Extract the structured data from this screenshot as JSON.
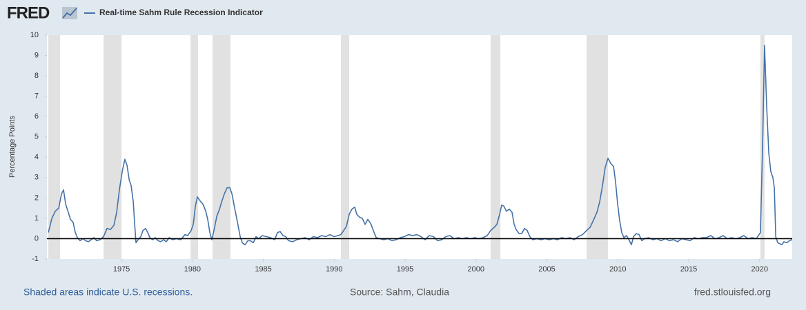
{
  "chart_data": {
    "type": "line",
    "logo": "FRED",
    "title": "Real-time Sahm Rule Recession Indicator",
    "ylabel": "Percentage Points",
    "note": "Shaded areas indicate U.S. recessions.",
    "source": "Source: Sahm, Claudia",
    "site": "fred.stlouisfed.org",
    "xlim": [
      1969.74,
      2022.3
    ],
    "xticks": [
      1975,
      1980,
      1985,
      1990,
      1995,
      2000,
      2005,
      2010,
      2015,
      2020
    ],
    "ylim": [
      -1,
      10
    ],
    "yticks": [
      -1,
      0,
      1,
      2,
      3,
      4,
      5,
      6,
      7,
      8,
      9,
      10
    ],
    "reference_line": 0,
    "grid": false,
    "recession_color": "#e1e1e1",
    "recessions": [
      [
        1969.84,
        1970.67
      ],
      [
        1973.73,
        1975.0
      ],
      [
        1979.87,
        1980.4
      ],
      [
        1981.42,
        1982.69
      ],
      [
        1990.47,
        1991.06
      ],
      [
        2001.03,
        2001.72
      ],
      [
        2007.8,
        2009.31
      ],
      [
        2020.06,
        2020.35
      ]
    ],
    "x": [
      1969.84,
      1970.09,
      1970.33,
      1970.57,
      1970.77,
      1970.91,
      1971.06,
      1971.2,
      1971.4,
      1971.59,
      1971.74,
      1971.89,
      1972.08,
      1972.27,
      1972.47,
      1972.66,
      1972.86,
      1973.05,
      1973.25,
      1973.49,
      1973.73,
      1973.98,
      1974.22,
      1974.46,
      1974.66,
      1974.85,
      1975.05,
      1975.24,
      1975.39,
      1975.54,
      1975.68,
      1975.83,
      1975.92,
      1976.02,
      1976.17,
      1976.36,
      1976.51,
      1976.7,
      1976.85,
      1977.0,
      1977.19,
      1977.38,
      1977.58,
      1977.77,
      1977.97,
      1978.16,
      1978.36,
      1978.6,
      1978.89,
      1979.18,
      1979.48,
      1979.67,
      1979.91,
      1980.06,
      1980.21,
      1980.35,
      1980.55,
      1980.74,
      1980.94,
      1981.08,
      1981.23,
      1981.37,
      1981.52,
      1981.72,
      1981.91,
      1982.06,
      1982.25,
      1982.45,
      1982.64,
      1982.79,
      1982.98,
      1983.18,
      1983.37,
      1983.52,
      1983.71,
      1983.91,
      1984.1,
      1984.29,
      1984.49,
      1984.68,
      1984.93,
      1985.22,
      1985.51,
      1985.8,
      1986.0,
      1986.19,
      1986.39,
      1986.58,
      1986.78,
      1987.07,
      1987.36,
      1987.65,
      1987.94,
      1988.24,
      1988.53,
      1988.82,
      1989.11,
      1989.4,
      1989.7,
      1989.99,
      1990.28,
      1990.47,
      1990.67,
      1990.86,
      1991.06,
      1991.25,
      1991.45,
      1991.59,
      1991.79,
      1991.98,
      1992.18,
      1992.37,
      1992.57,
      1992.76,
      1992.96,
      1993.2,
      1993.49,
      1993.78,
      1994.08,
      1994.37,
      1994.66,
      1994.95,
      1995.24,
      1995.54,
      1995.83,
      1996.12,
      1996.41,
      1996.7,
      1997.0,
      1997.29,
      1997.58,
      1997.87,
      1998.16,
      1998.45,
      1998.75,
      1999.04,
      1999.33,
      1999.62,
      1999.91,
      2000.21,
      2000.5,
      2000.79,
      2001.03,
      2001.28,
      2001.47,
      2001.67,
      2001.81,
      2001.96,
      2002.15,
      2002.35,
      2002.54,
      2002.69,
      2002.83,
      2003.03,
      2003.22,
      2003.42,
      2003.61,
      2003.8,
      2004.0,
      2004.29,
      2004.59,
      2004.88,
      2005.17,
      2005.46,
      2005.75,
      2006.05,
      2006.34,
      2006.63,
      2006.92,
      2007.21,
      2007.51,
      2007.8,
      2008.04,
      2008.28,
      2008.53,
      2008.72,
      2008.92,
      2009.11,
      2009.31,
      2009.5,
      2009.7,
      2009.84,
      2009.99,
      2010.13,
      2010.28,
      2010.43,
      2010.62,
      2010.82,
      2010.96,
      2011.11,
      2011.3,
      2011.5,
      2011.69,
      2011.89,
      2012.18,
      2012.47,
      2012.76,
      2013.05,
      2013.35,
      2013.64,
      2013.93,
      2014.22,
      2014.51,
      2014.81,
      2015.1,
      2015.39,
      2015.68,
      2015.97,
      2016.26,
      2016.56,
      2016.85,
      2017.14,
      2017.43,
      2017.72,
      2018.02,
      2018.31,
      2018.6,
      2018.89,
      2019.18,
      2019.48,
      2019.77,
      2020.06,
      2020.21,
      2020.35,
      2020.5,
      2020.65,
      2020.79,
      2020.94,
      2021.04,
      2021.14,
      2021.28,
      2021.43,
      2021.57,
      2021.72,
      2021.92,
      2022.11,
      2022.3
    ],
    "series": [
      {
        "name": "Real-time Sahm Rule Recession Indicator",
        "color": "#4572a7",
        "values": [
          0.3,
          1.0,
          1.35,
          1.5,
          2.2,
          2.4,
          1.7,
          1.4,
          0.95,
          0.8,
          0.3,
          0.05,
          -0.1,
          0.0,
          -0.1,
          -0.15,
          -0.05,
          0.05,
          -0.1,
          -0.05,
          0.1,
          0.5,
          0.45,
          0.65,
          1.3,
          2.4,
          3.3,
          3.9,
          3.6,
          2.9,
          2.6,
          1.8,
          0.8,
          -0.2,
          -0.05,
          0.1,
          0.4,
          0.5,
          0.3,
          0.05,
          -0.05,
          0.05,
          -0.1,
          -0.15,
          -0.05,
          -0.15,
          0.05,
          -0.05,
          0.0,
          -0.05,
          0.2,
          0.15,
          0.4,
          0.7,
          1.6,
          2.05,
          1.85,
          1.7,
          1.35,
          0.95,
          0.3,
          -0.05,
          0.4,
          1.1,
          1.45,
          1.8,
          2.2,
          2.5,
          2.5,
          2.2,
          1.5,
          0.8,
          0.1,
          -0.2,
          -0.3,
          -0.1,
          -0.1,
          -0.2,
          0.1,
          0.0,
          0.15,
          0.1,
          0.05,
          -0.05,
          0.3,
          0.35,
          0.15,
          0.1,
          -0.1,
          -0.15,
          -0.05,
          0.0,
          0.05,
          -0.05,
          0.1,
          0.05,
          0.15,
          0.1,
          0.2,
          0.1,
          0.15,
          0.2,
          0.4,
          0.6,
          1.2,
          1.45,
          1.55,
          1.2,
          1.05,
          1.0,
          0.7,
          0.95,
          0.75,
          0.4,
          0.05,
          0.0,
          -0.05,
          0.0,
          -0.1,
          -0.05,
          0.05,
          0.1,
          0.2,
          0.15,
          0.2,
          0.1,
          -0.05,
          0.15,
          0.1,
          -0.1,
          -0.05,
          0.1,
          0.15,
          0.0,
          0.05,
          0.0,
          0.05,
          0.0,
          0.05,
          0.0,
          0.05,
          0.15,
          0.4,
          0.55,
          0.7,
          1.2,
          1.65,
          1.6,
          1.35,
          1.45,
          1.3,
          0.7,
          0.45,
          0.25,
          0.25,
          0.5,
          0.4,
          0.1,
          -0.05,
          0.0,
          -0.05,
          0.0,
          -0.05,
          0.0,
          -0.05,
          0.05,
          0.0,
          0.05,
          -0.05,
          0.1,
          0.2,
          0.4,
          0.55,
          0.9,
          1.3,
          1.8,
          2.6,
          3.5,
          3.95,
          3.7,
          3.55,
          2.8,
          1.7,
          0.9,
          0.3,
          0.05,
          0.15,
          -0.1,
          -0.3,
          0.1,
          0.25,
          0.2,
          -0.1,
          0.0,
          0.05,
          -0.05,
          0.0,
          -0.1,
          0.0,
          -0.1,
          -0.05,
          -0.15,
          0.0,
          -0.05,
          -0.1,
          0.05,
          0.0,
          0.05,
          0.05,
          0.15,
          0.0,
          0.05,
          0.15,
          0.0,
          0.05,
          0.0,
          0.05,
          0.15,
          0.0,
          0.05,
          0.0,
          0.3,
          4.5,
          9.5,
          6.5,
          4.2,
          3.3,
          3.0,
          2.5,
          0.1,
          -0.2,
          -0.25,
          -0.3,
          -0.15,
          -0.2,
          -0.1,
          -0.05
        ]
      }
    ]
  }
}
